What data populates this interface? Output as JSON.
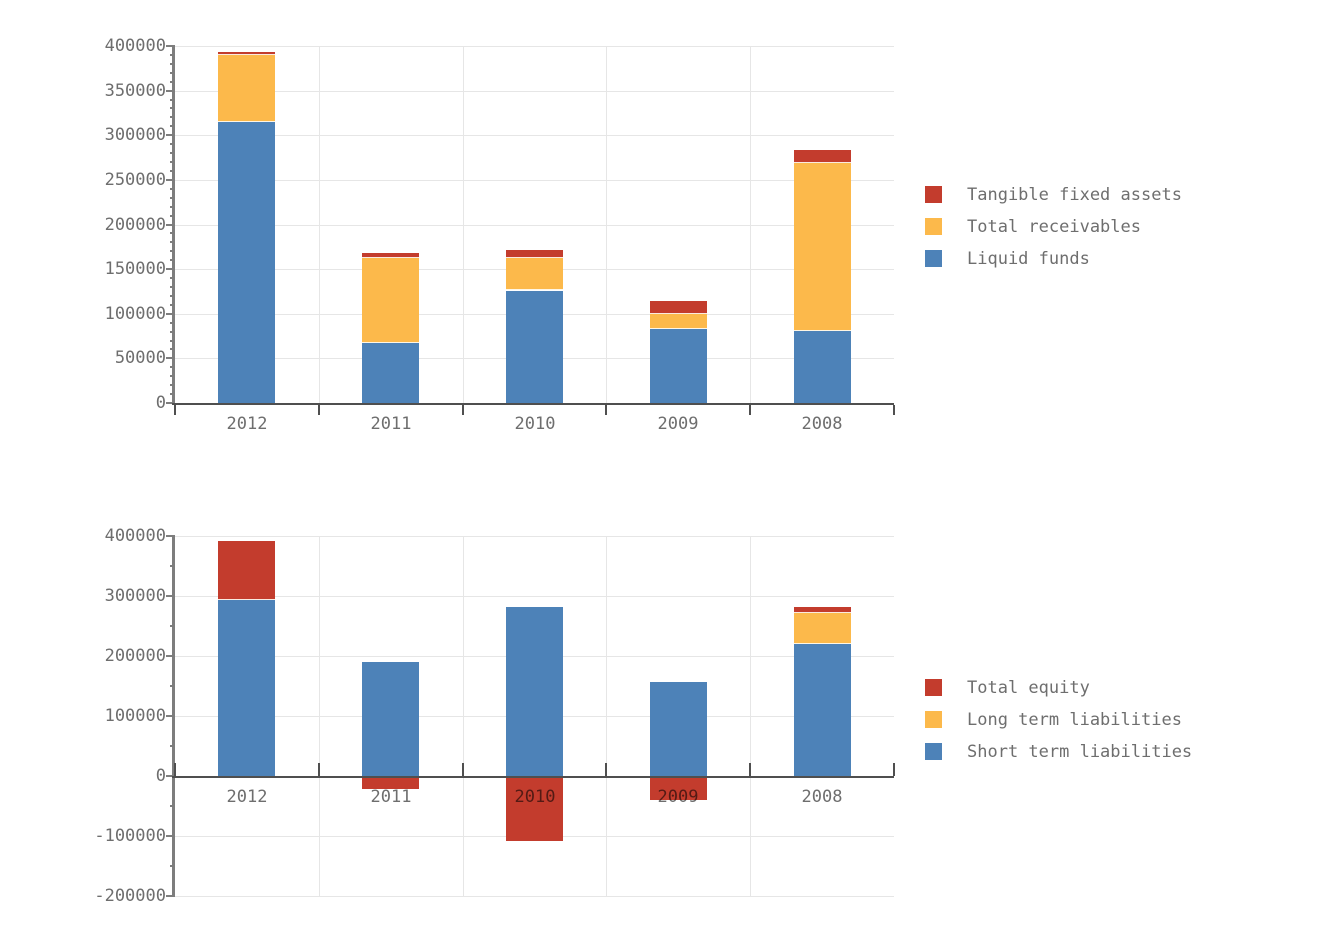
{
  "colors": {
    "red": "#c33c2d",
    "orange": "#fcb94b",
    "blue": "#4d82b8",
    "grid": "#e6e6e6",
    "axis_dark": "#4f4f4f",
    "spine_gray": "#7d7d7d",
    "text_gray": "#6e6e6e",
    "background": "#ffffff"
  },
  "chart_data": [
    {
      "type": "bar",
      "stacked": true,
      "title": "",
      "xlabel": "",
      "ylabel": "",
      "categories": [
        "2012",
        "2011",
        "2010",
        "2009",
        "2008"
      ],
      "series": [
        {
          "name": "Liquid funds",
          "color": "blue",
          "values": [
            315000,
            67000,
            126000,
            83000,
            81000
          ]
        },
        {
          "name": "Total receivables",
          "color": "orange",
          "values": [
            75000,
            96000,
            36000,
            17000,
            188000
          ]
        },
        {
          "name": "Tangible fixed assets",
          "color": "red",
          "values": [
            3000,
            5000,
            9000,
            14000,
            14000
          ]
        }
      ],
      "legend": [
        {
          "label": "Tangible fixed assets",
          "color": "red"
        },
        {
          "label": "Total receivables",
          "color": "orange"
        },
        {
          "label": "Liquid funds",
          "color": "blue"
        }
      ],
      "legend_position": "right",
      "ylim": [
        0,
        400000
      ],
      "ytick_step": 50000,
      "yminor_step": 10000,
      "yticks": [
        "400000",
        "350000",
        "300000",
        "250000",
        "200000",
        "150000",
        "100000",
        "50000",
        "0"
      ],
      "grid": true
    },
    {
      "type": "bar",
      "stacked": true,
      "title": "",
      "xlabel": "",
      "ylabel": "",
      "categories": [
        "2012",
        "2011",
        "2010",
        "2009",
        "2008"
      ],
      "series": [
        {
          "name": "Short term liabilities",
          "color": "blue",
          "values": [
            293000,
            190000,
            282000,
            156000,
            220000
          ]
        },
        {
          "name": "Long term liabilities",
          "color": "orange",
          "values": [
            0,
            0,
            0,
            0,
            51000
          ]
        },
        {
          "name": "Total equity",
          "color": "red",
          "values": [
            98000,
            -22000,
            -108000,
            -40000,
            10000
          ]
        }
      ],
      "legend": [
        {
          "label": "Total equity",
          "color": "red"
        },
        {
          "label": "Long term liabilities",
          "color": "orange"
        },
        {
          "label": "Short term liabilities",
          "color": "blue"
        }
      ],
      "legend_position": "right",
      "ylim": [
        -200000,
        400000
      ],
      "ytick_step": 100000,
      "yminor_step": 50000,
      "yticks": [
        "400000",
        "300000",
        "200000",
        "100000",
        "0",
        "-100000",
        "-200000"
      ],
      "grid": true
    }
  ]
}
